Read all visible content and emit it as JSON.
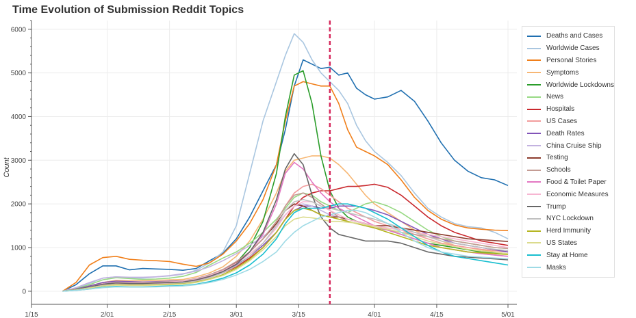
{
  "chart_data": {
    "type": "line",
    "title": "Time Evolution of Submission Reddit Topics",
    "xlabel": "",
    "ylabel": "Count",
    "x_ticks": [
      "1/15",
      "2/01",
      "2/15",
      "3/01",
      "3/15",
      "4/01",
      "4/15",
      "5/01"
    ],
    "y_ticks": [
      "0",
      "1000",
      "2000",
      "3000",
      "4000",
      "5000",
      "6000"
    ],
    "ylim": [
      -300,
      6200
    ],
    "xlim": [
      "1/15",
      "5/03"
    ],
    "grid": true,
    "legend_position": "right",
    "vertical_marker": {
      "x": "3/22",
      "color": "#d6285c",
      "style": "dashed"
    },
    "x": [
      "1/22",
      "1/25",
      "1/28",
      "1/31",
      "2/03",
      "2/06",
      "2/09",
      "2/12",
      "2/15",
      "2/18",
      "2/21",
      "2/24",
      "2/27",
      "3/01",
      "3/04",
      "3/07",
      "3/10",
      "3/12",
      "3/14",
      "3/16",
      "3/18",
      "3/20",
      "3/22",
      "3/24",
      "3/26",
      "3/28",
      "3/30",
      "4/01",
      "4/04",
      "4/07",
      "4/10",
      "4/13",
      "4/16",
      "4/19",
      "4/22",
      "4/25",
      "4/28",
      "5/01"
    ],
    "series": [
      {
        "name": "Deaths and Cases",
        "color": "#1f6fb0",
        "values": [
          0,
          150,
          400,
          580,
          580,
          490,
          520,
          510,
          500,
          480,
          520,
          700,
          870,
          1200,
          1700,
          2300,
          2900,
          3700,
          4700,
          5300,
          5200,
          5100,
          5130,
          4950,
          5000,
          4650,
          4500,
          4400,
          4450,
          4600,
          4350,
          3900,
          3400,
          3000,
          2750,
          2600,
          2550,
          2420
        ]
      },
      {
        "name": "Worldwide Cases",
        "color": "#a9c6e0",
        "values": [
          0,
          70,
          180,
          300,
          330,
          310,
          300,
          330,
          350,
          390,
          480,
          650,
          900,
          1500,
          2700,
          3900,
          4800,
          5400,
          5900,
          5700,
          5300,
          5000,
          4800,
          4600,
          4300,
          3800,
          3450,
          3200,
          2950,
          2650,
          2250,
          1900,
          1700,
          1550,
          1480,
          1450,
          1350,
          1200
        ]
      },
      {
        "name": "Personal Stories",
        "color": "#f07f1a",
        "values": [
          0,
          200,
          600,
          770,
          800,
          730,
          710,
          700,
          680,
          620,
          570,
          650,
          850,
          1150,
          1550,
          2100,
          2900,
          3900,
          4700,
          4800,
          4750,
          4700,
          4700,
          4300,
          3700,
          3300,
          3200,
          3100,
          2900,
          2550,
          2150,
          1850,
          1650,
          1520,
          1450,
          1420,
          1400,
          1390
        ]
      },
      {
        "name": "Symptoms",
        "color": "#f7b774",
        "values": [
          0,
          50,
          120,
          200,
          250,
          240,
          240,
          250,
          260,
          270,
          330,
          420,
          560,
          800,
          1150,
          1650,
          2250,
          2750,
          3000,
          3050,
          3100,
          3100,
          3050,
          2900,
          2700,
          2450,
          2200,
          2000,
          1800,
          1600,
          1400,
          1250,
          1150,
          1050,
          1000,
          950,
          900,
          850
        ]
      },
      {
        "name": "Worldwide Lockdowns",
        "color": "#2a9d2a",
        "values": [
          0,
          40,
          90,
          150,
          180,
          170,
          170,
          180,
          190,
          200,
          250,
          330,
          460,
          650,
          1000,
          1600,
          2700,
          4000,
          4950,
          5050,
          4300,
          3100,
          2300,
          1900,
          1700,
          1600,
          1550,
          1500,
          1400,
          1300,
          1200,
          1100,
          1050,
          1000,
          950,
          900,
          880,
          850
        ]
      },
      {
        "name": "News",
        "color": "#97d983",
        "values": [
          0,
          60,
          150,
          260,
          310,
          290,
          270,
          280,
          300,
          340,
          430,
          600,
          760,
          900,
          1100,
          1350,
          1650,
          1900,
          2150,
          2250,
          2200,
          2050,
          1950,
          1850,
          1800,
          1900,
          2000,
          2050,
          1950,
          1800,
          1600,
          1400,
          1250,
          1150,
          1100,
          1050,
          1000,
          980
        ]
      },
      {
        "name": "Hospitals",
        "color": "#c9282d",
        "values": [
          0,
          40,
          100,
          160,
          190,
          180,
          180,
          190,
          200,
          210,
          250,
          320,
          420,
          560,
          760,
          1000,
          1350,
          1650,
          1950,
          2150,
          2250,
          2300,
          2300,
          2350,
          2400,
          2400,
          2420,
          2450,
          2380,
          2200,
          1950,
          1700,
          1500,
          1350,
          1250,
          1150,
          1100,
          1050
        ]
      },
      {
        "name": "US Cases",
        "color": "#f29b9b",
        "values": [
          0,
          30,
          80,
          140,
          170,
          170,
          170,
          180,
          190,
          210,
          260,
          350,
          470,
          650,
          900,
          1200,
          1600,
          1950,
          2250,
          2400,
          2450,
          2350,
          2200,
          2050,
          1900,
          1800,
          1700,
          1600,
          1500,
          1400,
          1300,
          1200,
          1100,
          1050,
          1000,
          960,
          930,
          900
        ]
      },
      {
        "name": "Death Rates",
        "color": "#8154b8",
        "values": [
          0,
          50,
          120,
          200,
          230,
          220,
          210,
          220,
          230,
          240,
          280,
          350,
          450,
          600,
          800,
          1050,
          1350,
          1650,
          1850,
          1950,
          1950,
          1900,
          1900,
          1950,
          1950,
          1950,
          1900,
          1850,
          1750,
          1600,
          1450,
          1300,
          1200,
          1100,
          1050,
          1000,
          950,
          900
        ]
      },
      {
        "name": "China Cruise Ship",
        "color": "#c3b2e0",
        "values": [
          0,
          80,
          200,
          300,
          330,
          320,
          320,
          330,
          360,
          400,
          460,
          560,
          700,
          860,
          1050,
          1250,
          1500,
          1750,
          1950,
          2000,
          1950,
          1850,
          1750,
          1700,
          1650,
          1600,
          1550,
          1500,
          1400,
          1300,
          1200,
          1100,
          1000,
          950,
          900,
          860,
          830,
          800
        ]
      },
      {
        "name": "Testing",
        "color": "#8c3b2c",
        "values": [
          0,
          40,
          100,
          170,
          200,
          190,
          190,
          200,
          210,
          230,
          280,
          360,
          480,
          660,
          900,
          1200,
          1550,
          1850,
          2000,
          1950,
          1850,
          1750,
          1700,
          1700,
          1650,
          1600,
          1550,
          1500,
          1500,
          1450,
          1400,
          1350,
          1300,
          1250,
          1200,
          1180,
          1160,
          1140
        ]
      },
      {
        "name": "Schools",
        "color": "#c49c94",
        "values": [
          0,
          40,
          100,
          170,
          210,
          200,
          200,
          210,
          220,
          240,
          290,
          380,
          500,
          680,
          900,
          1200,
          1600,
          1950,
          2200,
          2250,
          2150,
          2000,
          1850,
          1700,
          1600,
          1550,
          1500,
          1450,
          1400,
          1350,
          1300,
          1250,
          1200,
          1150,
          1100,
          1050,
          1000,
          980
        ]
      },
      {
        "name": "Food & Toilet Paper",
        "color": "#e377c2",
        "values": [
          0,
          30,
          80,
          130,
          160,
          150,
          150,
          160,
          170,
          190,
          240,
          320,
          440,
          620,
          900,
          1300,
          2000,
          2700,
          2950,
          2800,
          2500,
          2250,
          2050,
          1900,
          1800,
          1700,
          1600,
          1500,
          1400,
          1300,
          1200,
          1100,
          1000,
          950,
          900,
          860,
          830,
          800
        ]
      },
      {
        "name": "Economic Measures",
        "color": "#f7b6d2",
        "values": [
          0,
          40,
          100,
          170,
          200,
          190,
          190,
          200,
          210,
          230,
          280,
          360,
          470,
          640,
          850,
          1100,
          1450,
          1750,
          1950,
          2050,
          2050,
          1950,
          1850,
          1750,
          1650,
          1600,
          1550,
          1500,
          1450,
          1400,
          1350,
          1300,
          1250,
          1200,
          1150,
          1100,
          1050,
          1000
        ]
      },
      {
        "name": "Trump",
        "color": "#666666",
        "values": [
          0,
          40,
          100,
          160,
          190,
          180,
          180,
          190,
          200,
          210,
          260,
          340,
          450,
          620,
          900,
          1350,
          2100,
          2800,
          3150,
          2900,
          2200,
          1700,
          1450,
          1300,
          1250,
          1200,
          1150,
          1150,
          1150,
          1100,
          1000,
          900,
          850,
          800,
          780,
          760,
          740,
          720
        ]
      },
      {
        "name": "NYC Lockdown",
        "color": "#c0c0c0",
        "values": [
          0,
          30,
          80,
          130,
          160,
          150,
          150,
          160,
          170,
          190,
          230,
          310,
          420,
          580,
          800,
          1100,
          1500,
          1850,
          2050,
          2100,
          2050,
          1950,
          1900,
          1850,
          1800,
          1750,
          1700,
          1650,
          1550,
          1450,
          1350,
          1250,
          1150,
          1100,
          1050,
          1000,
          960,
          930
        ]
      },
      {
        "name": "Herd Immunity",
        "color": "#b5b520",
        "values": [
          0,
          30,
          70,
          120,
          150,
          140,
          140,
          150,
          160,
          170,
          210,
          280,
          380,
          530,
          730,
          1000,
          1350,
          1650,
          1850,
          1900,
          1850,
          1750,
          1700,
          1650,
          1600,
          1550,
          1500,
          1450,
          1350,
          1250,
          1150,
          1050,
          1000,
          950,
          900,
          880,
          860,
          840
        ]
      },
      {
        "name": "US States",
        "color": "#dbdb8d",
        "values": [
          0,
          30,
          70,
          120,
          140,
          130,
          130,
          140,
          150,
          160,
          200,
          270,
          360,
          500,
          700,
          950,
          1250,
          1500,
          1650,
          1700,
          1680,
          1650,
          1600,
          1600,
          1580,
          1560,
          1520,
          1480,
          1420,
          1350,
          1250,
          1150,
          1080,
          1020,
          960,
          920,
          890,
          860
        ]
      },
      {
        "name": "Stay at Home",
        "color": "#17becf",
        "values": [
          0,
          20,
          50,
          90,
          110,
          100,
          100,
          110,
          120,
          130,
          160,
          220,
          300,
          420,
          600,
          850,
          1200,
          1550,
          1800,
          1900,
          1900,
          1900,
          1950,
          2000,
          2000,
          1950,
          1900,
          1800,
          1650,
          1450,
          1250,
          1050,
          900,
          800,
          750,
          700,
          650,
          600
        ]
      },
      {
        "name": "Masks",
        "color": "#9edae5",
        "values": [
          0,
          20,
          50,
          80,
          100,
          95,
          95,
          100,
          110,
          120,
          150,
          200,
          270,
          370,
          500,
          680,
          900,
          1150,
          1350,
          1500,
          1600,
          1700,
          1750,
          1800,
          1850,
          1850,
          1800,
          1700,
          1550,
          1350,
          1150,
          1000,
          900,
          850,
          800,
          780,
          760,
          740
        ]
      }
    ]
  }
}
